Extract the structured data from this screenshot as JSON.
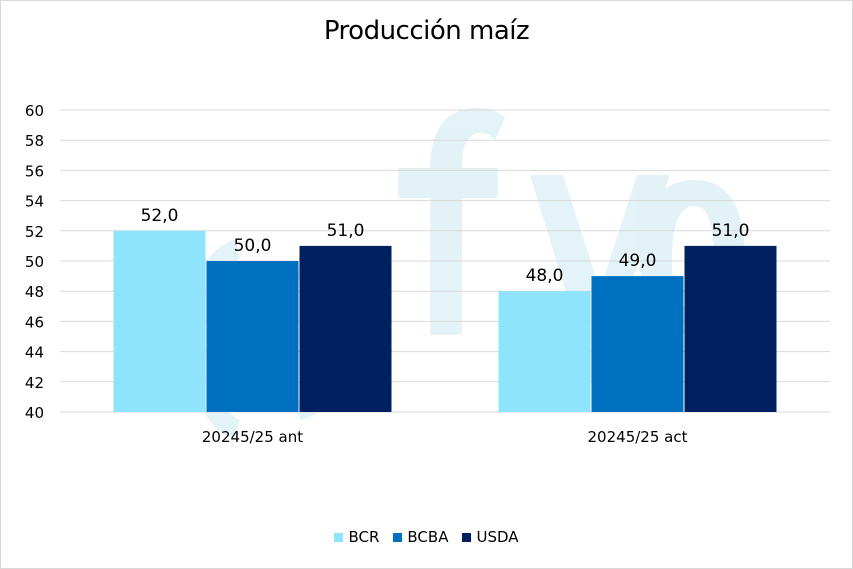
{
  "chart_data": {
    "type": "bar",
    "title": "Producción maíz",
    "categories": [
      "20245/25 ant",
      "20245/25 act"
    ],
    "series": [
      {
        "name": "BCR",
        "values": [
          52.0,
          48.0
        ],
        "color": "#8ee3fd"
      },
      {
        "name": "BCBA",
        "values": [
          50.0,
          49.0
        ],
        "color": "#0070c0"
      },
      {
        "name": "USDA",
        "values": [
          51.0,
          51.0
        ],
        "color": "#002060"
      }
    ],
    "data_labels": [
      [
        "52,0",
        "48,0"
      ],
      [
        "50,0",
        "49,0"
      ],
      [
        "51,0",
        "51,0"
      ]
    ],
    "ylim": [
      40,
      60
    ],
    "yticks": [
      "40",
      "42",
      "44",
      "46",
      "48",
      "50",
      "52",
      "54",
      "56",
      "58",
      "60"
    ],
    "grid": true,
    "legend_position": "bottom",
    "watermark": "fyo"
  }
}
